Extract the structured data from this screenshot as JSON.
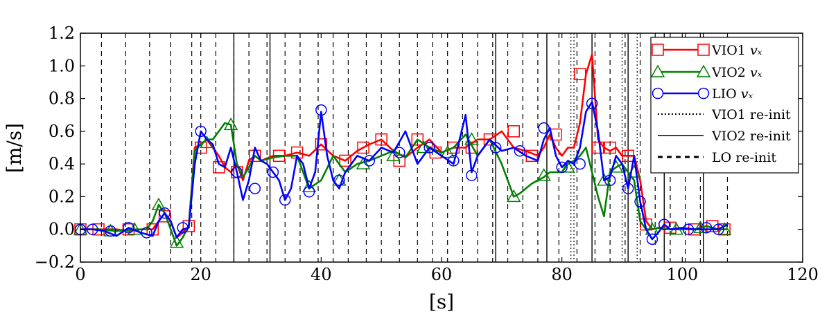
{
  "chart_data": {
    "type": "line",
    "xlabel": "[s]",
    "ylabel": "[m/s]",
    "xlim": [
      0,
      120
    ],
    "ylim": [
      -0.2,
      1.2
    ],
    "xticks": [
      0,
      20,
      40,
      60,
      80,
      100,
      120
    ],
    "yticks": [
      -0.2,
      0.0,
      0.2,
      0.4,
      0.6,
      0.8,
      1.0,
      1.2
    ],
    "xtick_labels": [
      "0",
      "20",
      "40",
      "60",
      "80",
      "100",
      "120"
    ],
    "ytick_labels": [
      "−0.2",
      "0.0",
      "0.2",
      "0.4",
      "0.6",
      "0.8",
      "1.0",
      "1.2"
    ],
    "grid": false,
    "legend_position": "top-right",
    "series": [
      {
        "name": "VIO1",
        "subscript": "vₓ",
        "color": "#ff0000",
        "marker": "square",
        "x": [
          0,
          3,
          6,
          8,
          10,
          12,
          13,
          14,
          15,
          16,
          17,
          18,
          19,
          20,
          21,
          22,
          23,
          24,
          25,
          26,
          27,
          28,
          29,
          30,
          32,
          34,
          36,
          38,
          40,
          42,
          44,
          46,
          48,
          50,
          52,
          54,
          56,
          58,
          60,
          62,
          64,
          66,
          68,
          70,
          72,
          74,
          76,
          77,
          78,
          79,
          80,
          81,
          82,
          83,
          84,
          85,
          86,
          87,
          88,
          89,
          90,
          91,
          92,
          93,
          94,
          95,
          96,
          98,
          100,
          102,
          104,
          106,
          107.5
        ],
        "y": [
          0.0,
          0.0,
          0.0,
          -0.01,
          0.0,
          0.0,
          0.05,
          0.1,
          0.05,
          -0.05,
          -0.02,
          0.02,
          0.5,
          0.52,
          0.55,
          0.5,
          0.45,
          0.38,
          0.35,
          0.4,
          0.3,
          0.42,
          0.45,
          0.42,
          0.45,
          0.45,
          0.47,
          0.45,
          0.52,
          0.45,
          0.42,
          0.48,
          0.52,
          0.55,
          0.48,
          0.44,
          0.5,
          0.55,
          0.47,
          0.5,
          0.5,
          0.55,
          0.55,
          0.6,
          0.5,
          0.48,
          0.45,
          0.5,
          0.58,
          0.5,
          0.45,
          0.5,
          0.5,
          0.65,
          0.95,
          1.07,
          0.55,
          0.5,
          0.48,
          0.5,
          0.45,
          0.45,
          0.45,
          0.3,
          0.05,
          0.0,
          0.01,
          0.0,
          0.0,
          0.0,
          0.02,
          0.0,
          0.0
        ],
        "marker_x": [
          0,
          3,
          8,
          12,
          14,
          18,
          20,
          23,
          26,
          29,
          33,
          36,
          40,
          44,
          47,
          50,
          53,
          56,
          59,
          62,
          65,
          68,
          72,
          75,
          79,
          83,
          86,
          88,
          91,
          94,
          98,
          102,
          105,
          107
        ],
        "marker_y": [
          0.0,
          0.0,
          0.0,
          0.0,
          0.08,
          0.02,
          0.5,
          0.38,
          0.35,
          0.45,
          0.45,
          0.47,
          0.52,
          0.42,
          0.5,
          0.55,
          0.42,
          0.55,
          0.47,
          0.5,
          0.5,
          0.55,
          0.6,
          0.45,
          0.58,
          0.95,
          0.5,
          0.5,
          0.45,
          0.03,
          0.01,
          0.0,
          0.02,
          0.0
        ]
      },
      {
        "name": "VIO2",
        "subscript": "vₓ",
        "color": "#008000",
        "marker": "triangle",
        "x": [
          0,
          3,
          6,
          9,
          11,
          12,
          13,
          14,
          15,
          16,
          17,
          18,
          19,
          20,
          21,
          22,
          23,
          24,
          25,
          26,
          27,
          28,
          29,
          30,
          32,
          34,
          36,
          38,
          40,
          42,
          44,
          46,
          48,
          50,
          52,
          54,
          56,
          58,
          60,
          62,
          64,
          66,
          68,
          70,
          72,
          73,
          74,
          75,
          76,
          77,
          78,
          80,
          81,
          82,
          83,
          84,
          85,
          86,
          87,
          88,
          89,
          90,
          91,
          92,
          93,
          94,
          95,
          96,
          98,
          100,
          102,
          104,
          106,
          107.5
        ],
        "y": [
          0.0,
          0.0,
          -0.01,
          0.0,
          0.0,
          0.05,
          0.15,
          0.1,
          0.0,
          -0.1,
          -0.05,
          0.02,
          0.48,
          0.52,
          0.55,
          0.55,
          0.6,
          0.65,
          0.64,
          0.4,
          0.32,
          0.38,
          0.45,
          0.42,
          0.44,
          0.45,
          0.45,
          0.25,
          0.3,
          0.45,
          0.35,
          0.4,
          0.42,
          0.45,
          0.48,
          0.44,
          0.55,
          0.5,
          0.47,
          0.5,
          0.58,
          0.45,
          0.55,
          0.4,
          0.2,
          0.22,
          0.25,
          0.28,
          0.3,
          0.32,
          0.35,
          0.35,
          0.4,
          0.42,
          0.45,
          0.5,
          0.35,
          0.2,
          0.08,
          0.35,
          0.38,
          0.4,
          0.35,
          0.3,
          0.05,
          0.0,
          0.0,
          0.01,
          0.0,
          0.0,
          0.0,
          0.02,
          0.0,
          0.0
        ],
        "marker_x": [
          0,
          5,
          9,
          13,
          16,
          21,
          25,
          38,
          43,
          47,
          52,
          57,
          61,
          65,
          72,
          77,
          81,
          87,
          89,
          92,
          95,
          99,
          103,
          107
        ],
        "marker_y": [
          0.0,
          -0.01,
          0.0,
          0.15,
          -0.08,
          0.53,
          0.64,
          0.26,
          0.3,
          0.4,
          0.45,
          0.5,
          0.47,
          0.55,
          0.2,
          0.33,
          0.38,
          0.3,
          0.38,
          0.35,
          0.0,
          0.0,
          0.01,
          0.0
        ]
      },
      {
        "name": "LIO",
        "subscript": "vₓ",
        "color": "#0000ff",
        "marker": "circle",
        "x": [
          0,
          2,
          4,
          6,
          8,
          10,
          12,
          13,
          14,
          15,
          16,
          17,
          18,
          19,
          20,
          21,
          22,
          23,
          24,
          25,
          26,
          27,
          28,
          29,
          30,
          31,
          32,
          33,
          34,
          35,
          36,
          37,
          38,
          39,
          40,
          41,
          42,
          43,
          44,
          46,
          48,
          50,
          52,
          54,
          56,
          58,
          60,
          62,
          64,
          65,
          66,
          68,
          70,
          72,
          74,
          76,
          77,
          78,
          79,
          80,
          81,
          82,
          83,
          84,
          85,
          86,
          87,
          88,
          89,
          90,
          91,
          92,
          93,
          94,
          95,
          96,
          97,
          98,
          100,
          102,
          104,
          106,
          107.5
        ],
        "y": [
          0.0,
          0.0,
          -0.01,
          -0.04,
          0.01,
          -0.02,
          -0.04,
          0.05,
          0.1,
          0.05,
          -0.05,
          0.0,
          0.01,
          0.4,
          0.6,
          0.55,
          0.52,
          0.4,
          0.38,
          0.5,
          0.35,
          0.18,
          0.3,
          0.5,
          0.42,
          0.4,
          0.35,
          0.3,
          0.18,
          0.25,
          0.45,
          0.4,
          0.25,
          0.35,
          0.72,
          0.45,
          0.3,
          0.25,
          0.35,
          0.45,
          0.42,
          0.5,
          0.47,
          0.6,
          0.4,
          0.5,
          0.45,
          0.4,
          0.7,
          0.35,
          0.45,
          0.55,
          0.48,
          0.5,
          0.45,
          0.42,
          0.55,
          0.62,
          0.45,
          0.38,
          0.42,
          0.4,
          0.5,
          0.72,
          0.78,
          0.6,
          0.3,
          0.32,
          0.45,
          0.4,
          0.25,
          0.45,
          0.17,
          0.0,
          -0.06,
          -0.02,
          0.03,
          0.0,
          0.01,
          0.0,
          0.0,
          0.0,
          0.03
        ],
        "marker_x": [
          0,
          2,
          5,
          8,
          11,
          14,
          17,
          20,
          26,
          29,
          32,
          34,
          38,
          40,
          43,
          48,
          53,
          58,
          62,
          65,
          69,
          73,
          77,
          80,
          83,
          85,
          88,
          91,
          93,
          95,
          97,
          101,
          104,
          106
        ],
        "marker_y": [
          0.0,
          0.0,
          -0.01,
          0.01,
          -0.02,
          0.1,
          0.01,
          0.6,
          0.35,
          0.25,
          0.35,
          0.18,
          0.23,
          0.73,
          0.3,
          0.42,
          0.47,
          0.5,
          0.42,
          0.33,
          0.5,
          0.48,
          0.62,
          0.38,
          0.4,
          0.77,
          0.3,
          0.25,
          0.17,
          -0.06,
          0.03,
          0.0,
          0.01,
          0.0
        ]
      }
    ],
    "reinit_lines": [
      {
        "name": "VIO1 re-init",
        "style": "dotted",
        "x": [
          81.5,
          82.0,
          90.0,
          92.5
        ]
      },
      {
        "name": "VIO2 re-init",
        "style": "solid",
        "x": [
          25.5,
          31.5,
          69.0,
          77.5,
          85.0,
          91.0,
          97.0,
          103.5
        ]
      },
      {
        "name": "LO re-init",
        "style": "dashed",
        "x": [
          3.5,
          7.5,
          11.5,
          15.0,
          18.5,
          20.0,
          22.5,
          25.5,
          28.0,
          31.0,
          34.0,
          36.5,
          39.5,
          42.0,
          44.5,
          47.5,
          50.0,
          53.0,
          56.0,
          58.5,
          61.0,
          63.5,
          66.0,
          68.5,
          71.0,
          73.5,
          76.0,
          79.5,
          82.5,
          85.5,
          88.0,
          90.5,
          93.0,
          95.5,
          98.0,
          100.5,
          103.0,
          107.5
        ]
      }
    ]
  }
}
